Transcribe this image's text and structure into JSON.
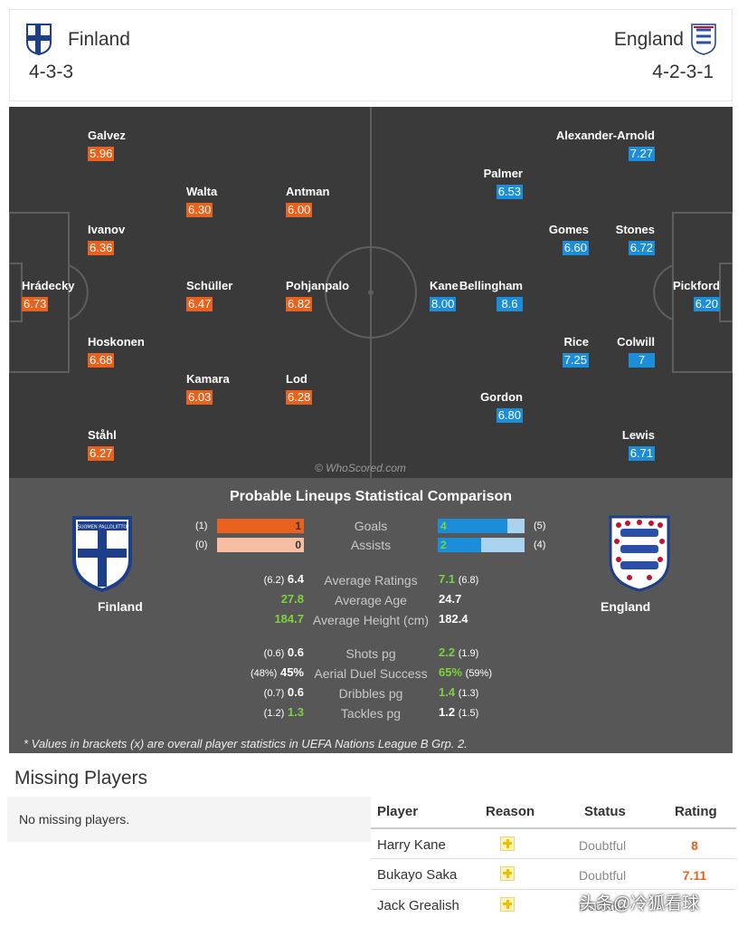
{
  "header": {
    "home": {
      "name": "Finland",
      "formation": "4-3-3"
    },
    "away": {
      "name": "England",
      "formation": "4-2-3-1"
    }
  },
  "pitch": {
    "home_players": [
      {
        "name": "Galvez",
        "rating": "5.96"
      },
      {
        "name": "Walta",
        "rating": "6.30"
      },
      {
        "name": "Antman",
        "rating": "6.00"
      },
      {
        "name": "Ivanov",
        "rating": "6.36"
      },
      {
        "name": "Hrádecky",
        "rating": "6.73"
      },
      {
        "name": "Schüller",
        "rating": "6.47"
      },
      {
        "name": "Pohjanpalo",
        "rating": "6.82"
      },
      {
        "name": "Hoskonen",
        "rating": "6.68"
      },
      {
        "name": "Kamara",
        "rating": "6.03"
      },
      {
        "name": "Lod",
        "rating": "6.28"
      },
      {
        "name": "Ståhl",
        "rating": "6.27"
      }
    ],
    "away_players": [
      {
        "name": "Alexander-Arnold",
        "rating": "7.27"
      },
      {
        "name": "Palmer",
        "rating": "6.53"
      },
      {
        "name": "Gomes",
        "rating": "6.60"
      },
      {
        "name": "Stones",
        "rating": "6.72"
      },
      {
        "name": "Kane",
        "rating": "8.00"
      },
      {
        "name": "Bellingham",
        "rating": "8.6"
      },
      {
        "name": "Pickford",
        "rating": "6.20"
      },
      {
        "name": "Rice",
        "rating": "7.25"
      },
      {
        "name": "Colwill",
        "rating": "7"
      },
      {
        "name": "Gordon",
        "rating": "6.80"
      },
      {
        "name": "Lewis",
        "rating": "6.71"
      }
    ],
    "watermark": "© WhoScored.com"
  },
  "comparison": {
    "title": "Probable Lineups Statistical Comparison",
    "home_name": "Finland",
    "away_name": "England",
    "home_crest_text": "SUOMEN PALLOLIITTO",
    "bars": [
      {
        "label": "Goals",
        "home": "1",
        "home_overall": "(1)",
        "away": "4",
        "away_overall": "(5)",
        "home_fraction": 1.0,
        "away_fraction": 0.8
      },
      {
        "label": "Assists",
        "home": "0",
        "home_overall": "(0)",
        "away": "2",
        "away_overall": "(4)",
        "home_fraction": 0.0,
        "away_fraction": 0.5
      }
    ],
    "stats1": [
      {
        "label": "Average Ratings",
        "home_overall": "(6.2)",
        "home": "6.4",
        "away": "7.1",
        "away_overall": "(6.8)"
      },
      {
        "label": "Average Age",
        "home_overall": "",
        "home": "27.8",
        "away": "24.7",
        "away_overall": ""
      },
      {
        "label": "Average Height (cm)",
        "home_overall": "",
        "home": "184.7",
        "away": "182.4",
        "away_overall": ""
      }
    ],
    "stats2": [
      {
        "label": "Shots pg",
        "home_overall": "(0.6)",
        "home": "0.6",
        "away": "2.2",
        "away_overall": "(1.9)"
      },
      {
        "label": "Aerial Duel Success",
        "home_overall": "(48%)",
        "home": "45%",
        "away": "65%",
        "away_overall": "(59%)"
      },
      {
        "label": "Dribbles pg",
        "home_overall": "(0.7)",
        "home": "0.6",
        "away": "1.4",
        "away_overall": "(1.3)"
      },
      {
        "label": "Tackles pg",
        "home_overall": "(1.2)",
        "home": "1.3",
        "away": "1.2",
        "away_overall": "(1.5)"
      }
    ],
    "footnote": "* Values in brackets (x) are overall player statistics in UEFA Nations League B Grp. 2."
  },
  "missing": {
    "title": "Missing Players",
    "home_text": "No missing players.",
    "headers": {
      "player": "Player",
      "reason": "Reason",
      "status": "Status",
      "rating": "Rating"
    },
    "rows": [
      {
        "player": "Harry Kane",
        "status": "Doubtful",
        "rating": "8"
      },
      {
        "player": "Bukayo Saka",
        "status": "Doubtful",
        "rating": "7.11"
      },
      {
        "player": "Jack Grealish",
        "status": "Doubtful",
        "rating": ""
      }
    ]
  },
  "overlay_watermark": "头条@冷狐看球",
  "colors": {
    "home_rating": "#e8621d",
    "away_rating": "#1c8ed9",
    "better": "#7bd33b",
    "pitch": "#3a3a3a"
  }
}
